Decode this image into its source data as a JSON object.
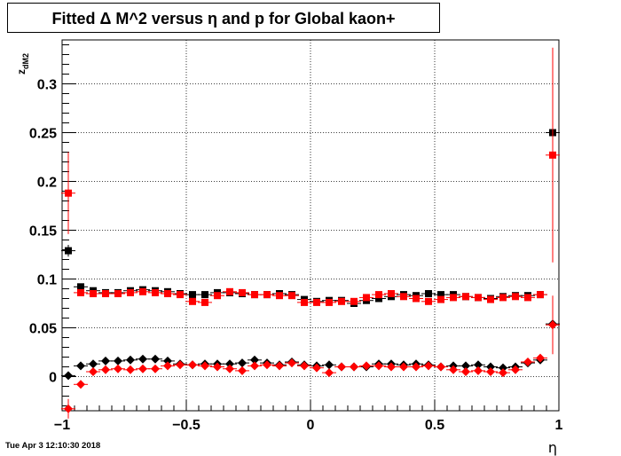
{
  "title": "Fitted Δ M^2 versus η and p for Global kaon+",
  "timestamp": "Tue Apr  3 12:10:30 2018",
  "chart_data": {
    "type": "scatter",
    "title": "Fitted Δ M^2 versus η and p for Global kaon+",
    "xlabel": "η",
    "ylabel": "z",
    "ylabel_subscript": "dM2",
    "xlim": [
      -1,
      1
    ],
    "ylim": [
      -0.035,
      0.345
    ],
    "grid": true,
    "xticks": [
      -1,
      -0.5,
      0,
      0.5,
      1
    ],
    "xtick_labels": [
      "−1",
      "−0.5",
      "0",
      "0.5",
      "1"
    ],
    "yticks": [
      0,
      0.05,
      0.1,
      0.15,
      0.2,
      0.25,
      0.3
    ],
    "ytick_labels": [
      "0",
      "0.05",
      "0.1",
      "0.15",
      "0.2",
      "0.25",
      "0.3"
    ],
    "series": [
      {
        "marker": "square",
        "color": "#000000",
        "x": [
          -0.975,
          -0.925,
          -0.875,
          -0.825,
          -0.775,
          -0.725,
          -0.675,
          -0.625,
          -0.575,
          -0.525,
          -0.475,
          -0.425,
          -0.375,
          -0.325,
          -0.275,
          -0.225,
          -0.175,
          -0.125,
          -0.075,
          -0.025,
          0.025,
          0.075,
          0.125,
          0.175,
          0.225,
          0.275,
          0.325,
          0.375,
          0.425,
          0.475,
          0.525,
          0.575,
          0.625,
          0.675,
          0.725,
          0.775,
          0.825,
          0.875,
          0.925,
          0.975
        ],
        "y": [
          0.129,
          0.092,
          0.088,
          0.086,
          0.086,
          0.088,
          0.089,
          0.088,
          0.087,
          0.085,
          0.084,
          0.084,
          0.086,
          0.086,
          0.085,
          0.084,
          0.084,
          0.085,
          0.084,
          0.079,
          0.077,
          0.078,
          0.078,
          0.075,
          0.078,
          0.08,
          0.082,
          0.084,
          0.083,
          0.085,
          0.084,
          0.084,
          0.082,
          0.081,
          0.08,
          0.082,
          0.083,
          0.083,
          0.084,
          0.25
        ],
        "yerr": [
          0.006,
          0.003,
          0.002,
          0.002,
          0.002,
          0.002,
          0.002,
          0.002,
          0.002,
          0.002,
          0.002,
          0.002,
          0.002,
          0.002,
          0.002,
          0.002,
          0.002,
          0.002,
          0.002,
          0.002,
          0.002,
          0.002,
          0.002,
          0.002,
          0.002,
          0.002,
          0.002,
          0.002,
          0.002,
          0.002,
          0.002,
          0.002,
          0.002,
          0.002,
          0.002,
          0.002,
          0.002,
          0.002,
          0.003,
          0.004
        ]
      },
      {
        "marker": "square",
        "color": "#ff0000",
        "x": [
          -0.975,
          -0.925,
          -0.875,
          -0.825,
          -0.775,
          -0.725,
          -0.675,
          -0.625,
          -0.575,
          -0.525,
          -0.475,
          -0.425,
          -0.375,
          -0.325,
          -0.275,
          -0.225,
          -0.175,
          -0.125,
          -0.075,
          -0.025,
          0.025,
          0.075,
          0.125,
          0.175,
          0.225,
          0.275,
          0.325,
          0.375,
          0.425,
          0.475,
          0.525,
          0.575,
          0.625,
          0.675,
          0.725,
          0.775,
          0.825,
          0.875,
          0.925,
          0.975
        ],
        "y": [
          0.188,
          0.086,
          0.085,
          0.085,
          0.085,
          0.086,
          0.087,
          0.086,
          0.085,
          0.084,
          0.077,
          0.076,
          0.083,
          0.087,
          0.086,
          0.084,
          0.084,
          0.083,
          0.083,
          0.076,
          0.076,
          0.076,
          0.077,
          0.077,
          0.081,
          0.084,
          0.085,
          0.082,
          0.08,
          0.077,
          0.079,
          0.081,
          0.082,
          0.081,
          0.079,
          0.081,
          0.082,
          0.081,
          0.084,
          0.227
        ],
        "yerr": [
          0.042,
          0.003,
          0.002,
          0.002,
          0.002,
          0.002,
          0.002,
          0.002,
          0.002,
          0.002,
          0.002,
          0.002,
          0.002,
          0.002,
          0.002,
          0.002,
          0.002,
          0.002,
          0.002,
          0.002,
          0.002,
          0.002,
          0.002,
          0.002,
          0.002,
          0.002,
          0.002,
          0.002,
          0.002,
          0.002,
          0.002,
          0.002,
          0.002,
          0.002,
          0.002,
          0.002,
          0.002,
          0.002,
          0.003,
          0.11
        ]
      },
      {
        "marker": "diamond",
        "color": "#000000",
        "x": [
          -0.975,
          -0.925,
          -0.875,
          -0.825,
          -0.775,
          -0.725,
          -0.675,
          -0.625,
          -0.575,
          -0.525,
          -0.475,
          -0.425,
          -0.375,
          -0.325,
          -0.275,
          -0.225,
          -0.175,
          -0.125,
          -0.075,
          -0.025,
          0.025,
          0.075,
          0.125,
          0.175,
          0.225,
          0.275,
          0.325,
          0.375,
          0.425,
          0.475,
          0.525,
          0.575,
          0.625,
          0.675,
          0.725,
          0.775,
          0.825,
          0.875,
          0.925,
          0.975
        ],
        "y": [
          0.001,
          0.011,
          0.013,
          0.016,
          0.016,
          0.017,
          0.018,
          0.018,
          0.016,
          0.013,
          0.012,
          0.013,
          0.013,
          0.013,
          0.014,
          0.017,
          0.014,
          0.012,
          0.015,
          0.012,
          0.011,
          0.012,
          0.01,
          0.01,
          0.01,
          0.013,
          0.013,
          0.012,
          0.013,
          0.012,
          0.01,
          0.011,
          0.011,
          0.012,
          0.01,
          0.009,
          0.01,
          0.014,
          0.017,
          0.054
        ],
        "yerr": [
          0.004,
          0.001,
          0.001,
          0.001,
          0.001,
          0.001,
          0.001,
          0.001,
          0.001,
          0.001,
          0.001,
          0.001,
          0.001,
          0.001,
          0.001,
          0.001,
          0.001,
          0.001,
          0.001,
          0.001,
          0.001,
          0.001,
          0.001,
          0.001,
          0.001,
          0.001,
          0.001,
          0.001,
          0.001,
          0.001,
          0.001,
          0.001,
          0.001,
          0.001,
          0.001,
          0.001,
          0.001,
          0.001,
          0.002,
          0.004
        ]
      },
      {
        "marker": "diamond",
        "color": "#ff0000",
        "x": [
          -0.975,
          -0.925,
          -0.875,
          -0.825,
          -0.775,
          -0.725,
          -0.675,
          -0.625,
          -0.575,
          -0.525,
          -0.475,
          -0.425,
          -0.375,
          -0.325,
          -0.275,
          -0.225,
          -0.175,
          -0.125,
          -0.075,
          -0.025,
          0.025,
          0.075,
          0.125,
          0.175,
          0.225,
          0.275,
          0.325,
          0.375,
          0.425,
          0.475,
          0.525,
          0.575,
          0.625,
          0.675,
          0.725,
          0.775,
          0.825,
          0.875,
          0.925,
          0.975
        ],
        "y": [
          -0.033,
          -0.008,
          0.005,
          0.007,
          0.008,
          0.007,
          0.008,
          0.008,
          0.011,
          0.012,
          0.012,
          0.011,
          0.01,
          0.008,
          0.006,
          0.011,
          0.012,
          0.011,
          0.014,
          0.011,
          0.009,
          0.004,
          0.01,
          0.01,
          0.011,
          0.011,
          0.01,
          0.01,
          0.01,
          0.011,
          0.01,
          0.007,
          0.005,
          0.006,
          0.005,
          0.004,
          0.007,
          0.015,
          0.019,
          0.053
        ],
        "yerr": [
          0.01,
          0.002,
          0.001,
          0.001,
          0.001,
          0.001,
          0.001,
          0.001,
          0.001,
          0.001,
          0.001,
          0.001,
          0.001,
          0.001,
          0.001,
          0.001,
          0.001,
          0.001,
          0.001,
          0.001,
          0.001,
          0.001,
          0.001,
          0.001,
          0.001,
          0.001,
          0.001,
          0.001,
          0.001,
          0.001,
          0.001,
          0.001,
          0.001,
          0.001,
          0.001,
          0.001,
          0.001,
          0.001,
          0.002,
          0.03
        ]
      }
    ]
  }
}
